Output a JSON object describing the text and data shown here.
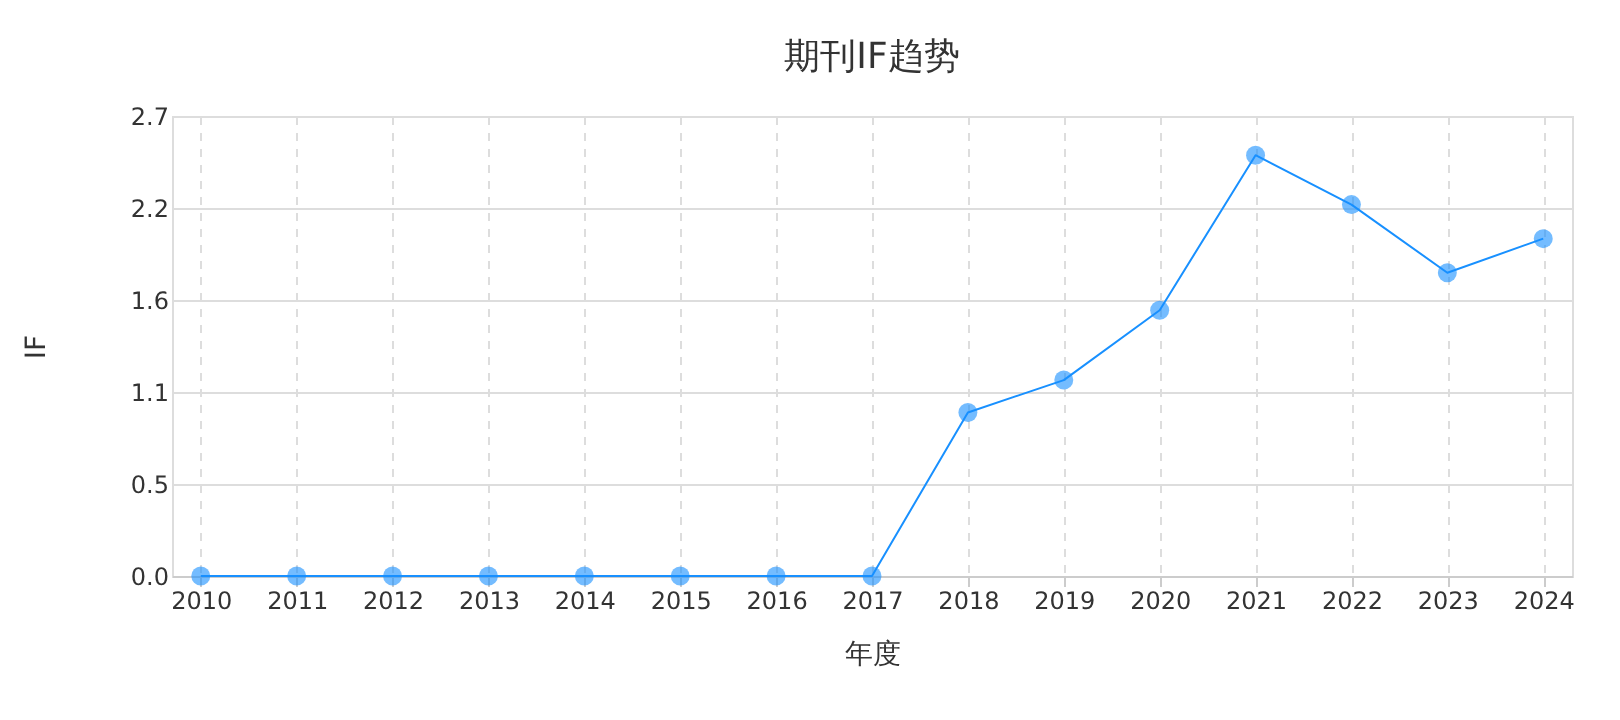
{
  "chart_data": {
    "type": "line",
    "title": "期刊IF趋势",
    "xlabel": "年度",
    "ylabel": "IF",
    "categories": [
      "2010",
      "2011",
      "2012",
      "2013",
      "2014",
      "2015",
      "2016",
      "2017",
      "2018",
      "2019",
      "2020",
      "2021",
      "2022",
      "2023",
      "2024"
    ],
    "series": [
      {
        "color": "#1890ff",
        "values": [
          0,
          0,
          0,
          0,
          0,
          0,
          0,
          0,
          0.96,
          1.15,
          1.56,
          2.47,
          2.18,
          1.78,
          1.98
        ]
      }
    ],
    "ylim": [
      0,
      2.7
    ],
    "yticks": [
      {
        "value": 0,
        "label": "0.0"
      },
      {
        "value": 0.54,
        "label": "0.5"
      },
      {
        "value": 1.08,
        "label": "1.1"
      },
      {
        "value": 1.62,
        "label": "1.6"
      },
      {
        "value": 2.16,
        "label": "2.2"
      },
      {
        "value": 2.7,
        "label": "2.7"
      }
    ],
    "grid": true,
    "marker": "circle",
    "line_style": "solid"
  }
}
